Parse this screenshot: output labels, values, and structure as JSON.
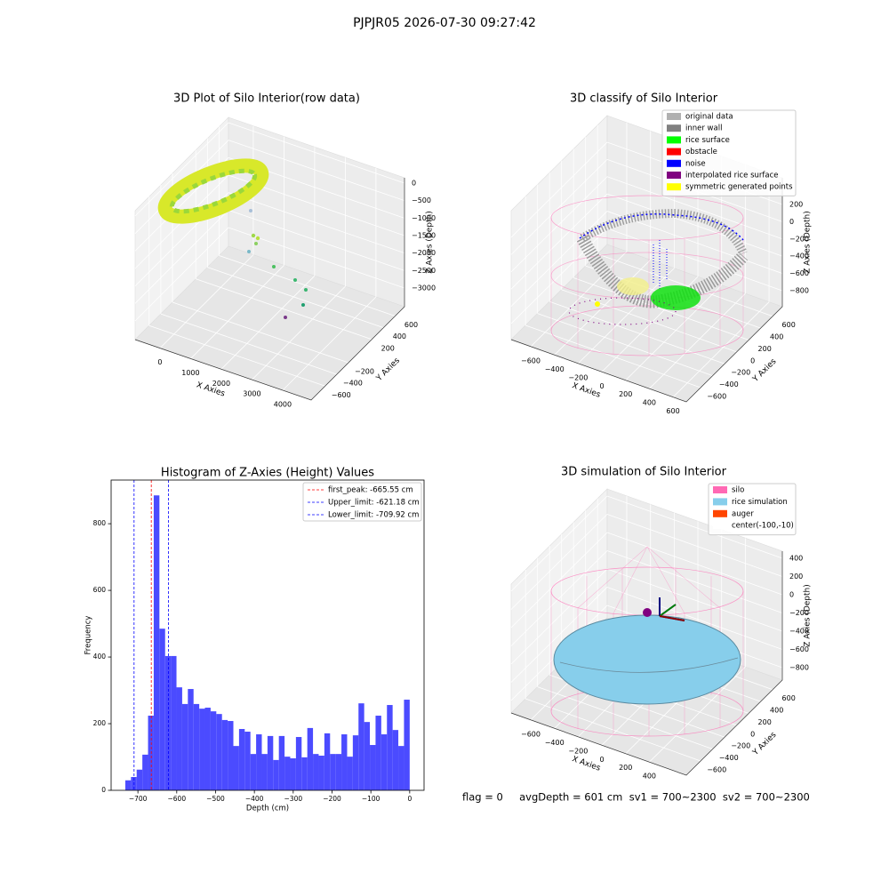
{
  "suptitle": "PJPJR05 2026-07-30 09:27:42",
  "footer": "flag = 0     avgDepth = 601 cm  sv1 = 700~2300  sv2 = 700~2300",
  "chart_data": [
    {
      "type": "scatter3d",
      "title": "3D Plot of Silo Interior(row data)",
      "xlabel": "X Axies",
      "ylabel": "Y Axies",
      "zlabel": "Z Axies (Depth)",
      "xlim": [
        -810,
        4930
      ],
      "ylim": [
        -840,
        760
      ],
      "zlim": [
        -3534,
        153
      ],
      "xticks": [
        0,
        1000,
        2000,
        3000,
        4000
      ],
      "yticks": [
        {
          "value": -600,
          "label": "−600"
        },
        {
          "value": -400,
          "label": "−400"
        },
        {
          "value": -200,
          "label": "−200"
        },
        200,
        400,
        600
      ],
      "zticks": [
        {
          "value": -3000,
          "label": "−3000"
        },
        {
          "value": -2500,
          "label": "−2500"
        },
        {
          "value": -2000,
          "label": "−2000"
        },
        {
          "value": -1500,
          "label": "−1500"
        },
        {
          "value": -1000,
          "label": "−1000"
        },
        {
          "value": -500,
          "label": "−500"
        },
        0
      ]
    },
    {
      "type": "scatter3d",
      "title": "3D classify of Silo Interior",
      "xlabel": "X Axies",
      "ylabel": "Y Axies",
      "zlabel": "Z Axies (Depth)",
      "xlim": [
        -765,
        712
      ],
      "ylim": [
        -840,
        760
      ],
      "zlim": [
        -986,
        509
      ],
      "xticks": [
        {
          "value": -600,
          "label": "−600"
        },
        {
          "value": -400,
          "label": "−400"
        },
        {
          "value": -200,
          "label": "−200"
        },
        0,
        200,
        400,
        600
      ],
      "yticks": [
        {
          "value": -600,
          "label": "−600"
        },
        {
          "value": -400,
          "label": "−400"
        },
        {
          "value": -200,
          "label": "−200"
        },
        0,
        200,
        400,
        600
      ],
      "zticks": [
        {
          "value": -800,
          "label": "−800"
        },
        {
          "value": -600,
          "label": "−600"
        },
        {
          "value": -400,
          "label": "−400"
        },
        {
          "value": -200,
          "label": "−200"
        },
        0,
        200
      ],
      "legend": [
        {
          "label": "original data",
          "color": "#b0b0b0"
        },
        {
          "label": "inner wall",
          "color": "#808080"
        },
        {
          "label": "rice surface",
          "color": "#00ff00"
        },
        {
          "label": "obstacle",
          "color": "#ff0000"
        },
        {
          "label": "noise",
          "color": "#0000ff"
        },
        {
          "label": "interpolated rice surface",
          "color": "#800080"
        },
        {
          "label": "symmetric generated points",
          "color": "#ffff00"
        }
      ]
    },
    {
      "type": "histogram",
      "title": "Histogram of Z-Axies (Height) Values",
      "xlabel": "Depth (cm)",
      "ylabel": "Frequency",
      "color": "#4b4bff",
      "xlim": [
        -769,
        37
      ],
      "ylim": [
        0,
        931
      ],
      "xticks": [
        {
          "value": -700,
          "label": "−700"
        },
        {
          "value": -600,
          "label": "−600"
        },
        {
          "value": -500,
          "label": "−500"
        },
        {
          "value": -400,
          "label": "−400"
        },
        {
          "value": -300,
          "label": "−300"
        },
        {
          "value": -200,
          "label": "−200"
        },
        {
          "value": -100,
          "label": "−100"
        },
        0
      ],
      "yticks": [
        0,
        200,
        400,
        600,
        800
      ],
      "bins": [
        -732.5,
        -717.85,
        -703.2,
        -688.55,
        -673.9,
        -659.25,
        -644.6,
        -629.95,
        -615.3,
        -600.65,
        -586,
        -571.35,
        -556.7,
        -542.05,
        -527.4,
        -512.75,
        -498.1,
        -483.45,
        -468.8,
        -454.15,
        -439.5,
        -424.85,
        -410.2,
        -395.55,
        -380.9,
        -366.25,
        -351.6,
        -336.95,
        -322.3,
        -307.65,
        -293,
        -278.35,
        -263.7,
        -249.05,
        -234.4,
        -219.75,
        -205.1,
        -190.45,
        -175.8,
        -161.15,
        -146.5,
        -131.85,
        -117.2,
        -102.55,
        -87.9,
        -73.25,
        -58.6,
        -43.95,
        -29.3,
        -14.65,
        0
      ],
      "values": [
        30,
        40,
        62,
        107,
        224,
        885,
        485,
        403,
        403,
        309,
        259,
        304,
        259,
        245,
        248,
        237,
        229,
        211,
        208,
        133,
        184,
        176,
        109,
        168,
        109,
        163,
        91,
        163,
        101,
        96,
        160,
        99,
        187,
        109,
        104,
        171,
        109,
        109,
        168,
        101,
        165,
        261,
        205,
        136,
        224,
        168,
        256,
        181,
        133,
        272
      ],
      "vlines": [
        {
          "label": "first_peak: -665.55 cm",
          "value": -665.55,
          "color": "#ff0000"
        },
        {
          "label": "Upper_limit: -621.18 cm",
          "value": -621.18,
          "color": "#0000ff"
        },
        {
          "label": "Lower_limit: -709.92 cm",
          "value": -709.92,
          "color": "#0000ff"
        }
      ]
    },
    {
      "type": "surface3d",
      "title": "3D simulation of Silo Interior",
      "xlabel": "X Axies",
      "ylabel": "Y Axies",
      "zlabel": "Z Axies (Depth)",
      "xlim": [
        -765,
        712
      ],
      "ylim": [
        -840,
        760
      ],
      "zlim": [
        -937,
        478
      ],
      "xticks": [
        {
          "value": -600,
          "label": "−600"
        },
        {
          "value": -400,
          "label": "−400"
        },
        {
          "value": -200,
          "label": "−200"
        },
        0,
        200,
        400
      ],
      "yticks": [
        {
          "value": -600,
          "label": "−600"
        },
        {
          "value": -400,
          "label": "−400"
        },
        {
          "value": -200,
          "label": "−200"
        },
        0,
        200,
        400,
        600
      ],
      "zticks": [
        {
          "value": -800,
          "label": "−800"
        },
        {
          "value": -600,
          "label": "−600"
        },
        {
          "value": -400,
          "label": "−400"
        },
        {
          "value": -200,
          "label": "−200"
        },
        0,
        200,
        400
      ],
      "legend": [
        {
          "label": "silo",
          "color": "#ff69b4"
        },
        {
          "label": "rice simulation",
          "color": "#87ceeb"
        },
        {
          "label": "auger",
          "color": "#ff4500"
        },
        {
          "label": "center(-100,-10)",
          "color": "#ffffff"
        }
      ]
    }
  ]
}
